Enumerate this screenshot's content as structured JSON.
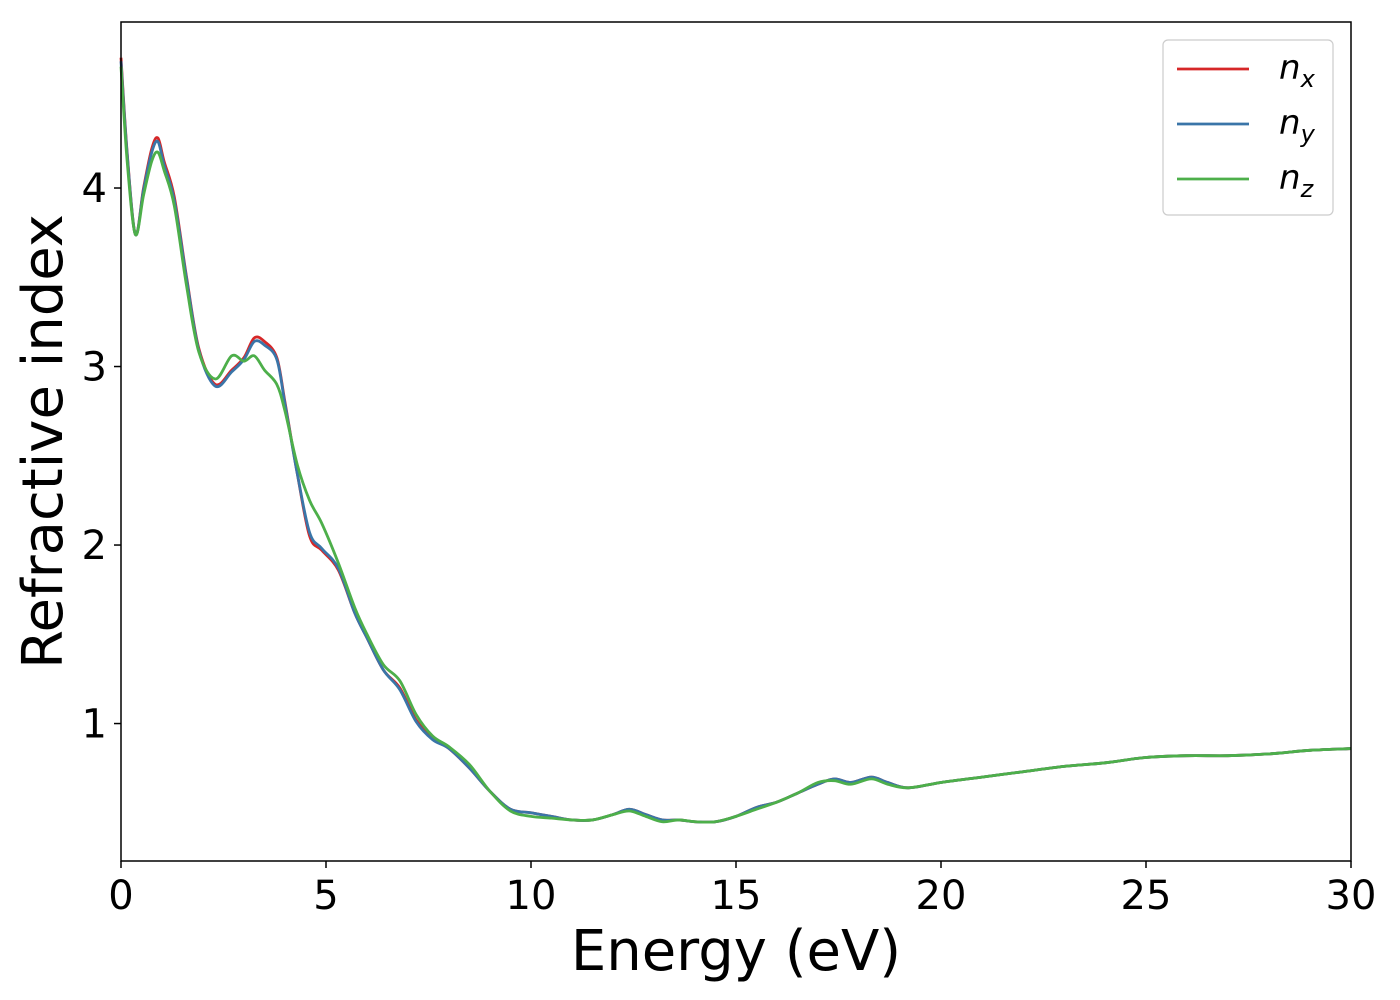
{
  "chart_data": {
    "type": "line",
    "title": "",
    "xlabel": "Energy (eV)",
    "ylabel": "Refractive index",
    "xlim": [
      0,
      30
    ],
    "ylim": [
      0.23,
      4.93
    ],
    "xticks": [
      0,
      5,
      10,
      15,
      20,
      25,
      30
    ],
    "xtick_labels": [
      "0",
      "5",
      "10",
      "15",
      "20",
      "25",
      "30"
    ],
    "yticks": [
      1,
      2,
      3,
      4
    ],
    "ytick_labels": [
      "1",
      "2",
      "3",
      "4"
    ],
    "grid": false,
    "legend_position": "top-right",
    "series": [
      {
        "name": "n",
        "subscript": "x",
        "color": "#d62728",
        "x": [
          0,
          0.15,
          0.35,
          0.55,
          0.75,
          0.9,
          1.05,
          1.3,
          1.6,
          1.9,
          2.3,
          2.7,
          3.0,
          3.25,
          3.5,
          3.8,
          4.0,
          4.3,
          4.6,
          4.9,
          5.3,
          5.7,
          6.0,
          6.4,
          6.8,
          7.2,
          7.6,
          8.0,
          8.5,
          9.0,
          9.5,
          10.0,
          10.5,
          11.0,
          11.5,
          12.0,
          12.4,
          12.8,
          13.2,
          13.6,
          14.0,
          14.5,
          15.0,
          15.5,
          16.0,
          16.5,
          17.0,
          17.4,
          17.8,
          18.3,
          18.7,
          19.2,
          20.0,
          21.0,
          22.0,
          23.0,
          24.0,
          25.0,
          26.0,
          27.0,
          28.0,
          29.0,
          30.0
        ],
        "values": [
          4.73,
          4.2,
          3.74,
          4.0,
          4.22,
          4.28,
          4.15,
          3.95,
          3.5,
          3.1,
          2.9,
          2.98,
          3.05,
          3.16,
          3.14,
          3.05,
          2.8,
          2.4,
          2.05,
          1.97,
          1.86,
          1.62,
          1.48,
          1.3,
          1.2,
          1.02,
          0.92,
          0.86,
          0.75,
          0.62,
          0.52,
          0.5,
          0.48,
          0.46,
          0.46,
          0.49,
          0.52,
          0.49,
          0.46,
          0.46,
          0.45,
          0.45,
          0.48,
          0.53,
          0.56,
          0.61,
          0.66,
          0.69,
          0.67,
          0.7,
          0.67,
          0.64,
          0.67,
          0.7,
          0.73,
          0.76,
          0.78,
          0.81,
          0.82,
          0.82,
          0.83,
          0.85,
          0.86
        ]
      },
      {
        "name": "n",
        "subscript": "y",
        "color": "#3a75a8",
        "x": [
          0,
          0.15,
          0.35,
          0.55,
          0.75,
          0.9,
          1.05,
          1.3,
          1.6,
          1.9,
          2.3,
          2.7,
          3.0,
          3.25,
          3.5,
          3.8,
          4.0,
          4.3,
          4.6,
          4.9,
          5.3,
          5.7,
          6.0,
          6.4,
          6.8,
          7.2,
          7.6,
          8.0,
          8.5,
          9.0,
          9.5,
          10.0,
          10.5,
          11.0,
          11.5,
          12.0,
          12.4,
          12.8,
          13.2,
          13.6,
          14.0,
          14.5,
          15.0,
          15.5,
          16.0,
          16.5,
          17.0,
          17.4,
          17.8,
          18.3,
          18.7,
          19.2,
          20.0,
          21.0,
          22.0,
          23.0,
          24.0,
          25.0,
          26.0,
          27.0,
          28.0,
          29.0,
          30.0
        ],
        "values": [
          4.71,
          4.19,
          3.74,
          3.99,
          4.2,
          4.26,
          4.13,
          3.93,
          3.49,
          3.09,
          2.89,
          2.97,
          3.04,
          3.14,
          3.12,
          3.04,
          2.79,
          2.4,
          2.07,
          1.98,
          1.87,
          1.62,
          1.48,
          1.3,
          1.19,
          1.01,
          0.91,
          0.86,
          0.75,
          0.62,
          0.52,
          0.5,
          0.48,
          0.46,
          0.46,
          0.49,
          0.52,
          0.49,
          0.46,
          0.46,
          0.45,
          0.45,
          0.48,
          0.53,
          0.56,
          0.61,
          0.66,
          0.69,
          0.67,
          0.7,
          0.67,
          0.64,
          0.67,
          0.7,
          0.73,
          0.76,
          0.78,
          0.81,
          0.82,
          0.82,
          0.83,
          0.85,
          0.86
        ]
      },
      {
        "name": "n",
        "subscript": "z",
        "color": "#4daf4a",
        "x": [
          0,
          0.15,
          0.35,
          0.55,
          0.75,
          0.9,
          1.05,
          1.3,
          1.6,
          1.9,
          2.3,
          2.7,
          3.0,
          3.25,
          3.5,
          3.8,
          4.0,
          4.3,
          4.6,
          4.9,
          5.3,
          5.7,
          6.0,
          6.4,
          6.8,
          7.2,
          7.6,
          8.0,
          8.5,
          9.0,
          9.5,
          10.0,
          10.5,
          11.0,
          11.5,
          12.0,
          12.4,
          12.8,
          13.2,
          13.6,
          14.0,
          14.5,
          15.0,
          15.5,
          16.0,
          16.5,
          17.0,
          17.4,
          17.8,
          18.3,
          18.7,
          19.2,
          20.0,
          21.0,
          22.0,
          23.0,
          24.0,
          25.0,
          26.0,
          27.0,
          28.0,
          29.0,
          30.0
        ],
        "values": [
          4.68,
          4.15,
          3.74,
          3.96,
          4.15,
          4.2,
          4.1,
          3.9,
          3.45,
          3.08,
          2.93,
          3.06,
          3.03,
          3.06,
          2.98,
          2.9,
          2.75,
          2.45,
          2.25,
          2.12,
          1.9,
          1.65,
          1.5,
          1.33,
          1.24,
          1.05,
          0.93,
          0.87,
          0.77,
          0.62,
          0.51,
          0.48,
          0.47,
          0.46,
          0.46,
          0.49,
          0.51,
          0.48,
          0.45,
          0.46,
          0.45,
          0.45,
          0.48,
          0.52,
          0.56,
          0.61,
          0.67,
          0.68,
          0.66,
          0.69,
          0.66,
          0.64,
          0.67,
          0.7,
          0.73,
          0.76,
          0.78,
          0.81,
          0.82,
          0.82,
          0.83,
          0.85,
          0.86
        ]
      }
    ]
  }
}
